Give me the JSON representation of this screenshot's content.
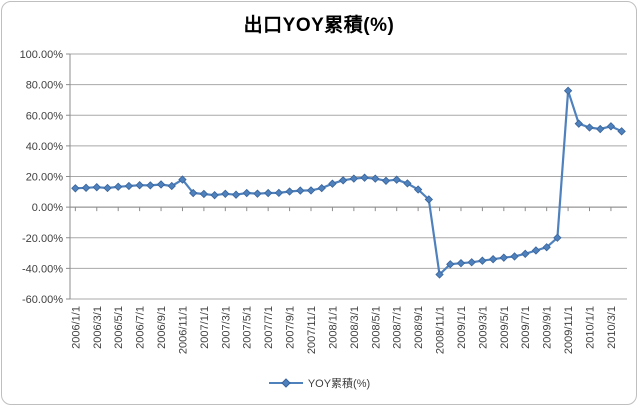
{
  "chart_data": {
    "type": "line",
    "title": "出口YOY累積(%)",
    "legend_position": "bottom",
    "grid": true,
    "x_categories": [
      "2006/1/1",
      "2006/2/1",
      "2006/3/1",
      "2006/4/1",
      "2006/5/1",
      "2006/6/1",
      "2006/7/1",
      "2006/8/1",
      "2006/9/1",
      "2006/10/1",
      "2006/11/1",
      "2006/12/1",
      "2007/1/1",
      "2007/2/1",
      "2007/3/1",
      "2007/4/1",
      "2007/5/1",
      "2007/6/1",
      "2007/7/1",
      "2007/8/1",
      "2007/9/1",
      "2007/10/1",
      "2007/11/1",
      "2007/12/1",
      "2008/1/1",
      "2008/2/1",
      "2008/3/1",
      "2008/4/1",
      "2008/5/1",
      "2008/6/1",
      "2008/7/1",
      "2008/8/1",
      "2008/9/1",
      "2008/10/1",
      "2008/11/1",
      "2008/12/1",
      "2009/1/1",
      "2009/2/1",
      "2009/3/1",
      "2009/4/1",
      "2009/5/1",
      "2009/6/1",
      "2009/7/1",
      "2009/8/1",
      "2009/9/1",
      "2009/10/1",
      "2009/11/1",
      "2009/12/1",
      "2010/1/1",
      "2010/2/1",
      "2010/3/1",
      "2010/4/1"
    ],
    "x_label_every": 2,
    "x_tick_labels": [
      "2006/1/1",
      "2006/3/1",
      "2006/5/1",
      "2006/7/1",
      "2006/9/1",
      "2006/11/1",
      "2007/1/1",
      "2007/3/1",
      "2007/5/1",
      "2007/7/1",
      "2007/9/1",
      "2007/11/1",
      "2008/1/1",
      "2008/3/1",
      "2008/5/1",
      "2008/7/1",
      "2008/9/1",
      "2008/11/1",
      "2009/1/1",
      "2009/3/1",
      "2009/5/1",
      "2009/7/1",
      "2009/9/1",
      "2009/11/1",
      "2010/1/1",
      "2010/3/1"
    ],
    "series": [
      {
        "name": "YOY累積(%)",
        "values": [
          12.3,
          12.6,
          13.0,
          12.5,
          13.3,
          13.8,
          14.3,
          14.2,
          14.8,
          13.8,
          18.0,
          9.2,
          8.6,
          7.8,
          8.7,
          8.1,
          9.2,
          8.8,
          9.2,
          9.3,
          10.2,
          10.8,
          10.9,
          12.4,
          15.3,
          17.5,
          18.6,
          19.2,
          18.6,
          17.2,
          17.9,
          15.5,
          11.5,
          5.0,
          -44.0,
          -37.3,
          -36.6,
          -36.0,
          -35.0,
          -34.0,
          -33.0,
          -32.2,
          -30.5,
          -28.3,
          -26.2,
          -20.0,
          76.0,
          54.5,
          52.0,
          51.0,
          52.8,
          49.5
        ]
      }
    ],
    "y_axis": {
      "min": -60,
      "max": 100,
      "step": 20,
      "tick_labels": [
        "100.00%",
        "80.00%",
        "60.00%",
        "40.00%",
        "20.00%",
        "0.00%",
        "-20.00%",
        "-40.00%",
        "-60.00%"
      ]
    },
    "colors": {
      "line": "#4F81BD",
      "marker_border": "#38639A",
      "gridline": "#A8A8A8",
      "axis": "#8C8C8C",
      "tick_text": "#404040",
      "title_text": "#000000",
      "frame_border": "#BFBFBF",
      "background": "#FFFFFF"
    }
  }
}
